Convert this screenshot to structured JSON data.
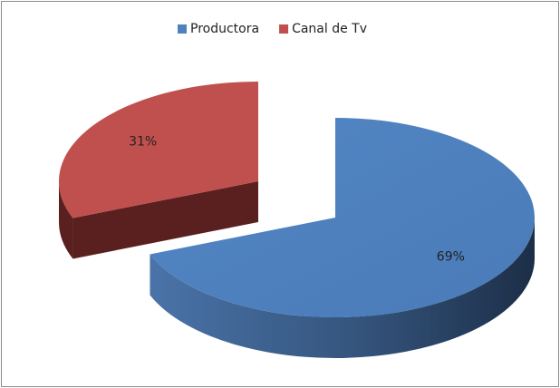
{
  "chart_data": {
    "type": "pie",
    "categories": [
      "Productora",
      "Canal de Tv"
    ],
    "values": [
      69,
      31
    ],
    "value_labels": [
      "69%",
      "31%"
    ],
    "colors": [
      "#4f81bd",
      "#c0504d"
    ],
    "legend": "top"
  }
}
